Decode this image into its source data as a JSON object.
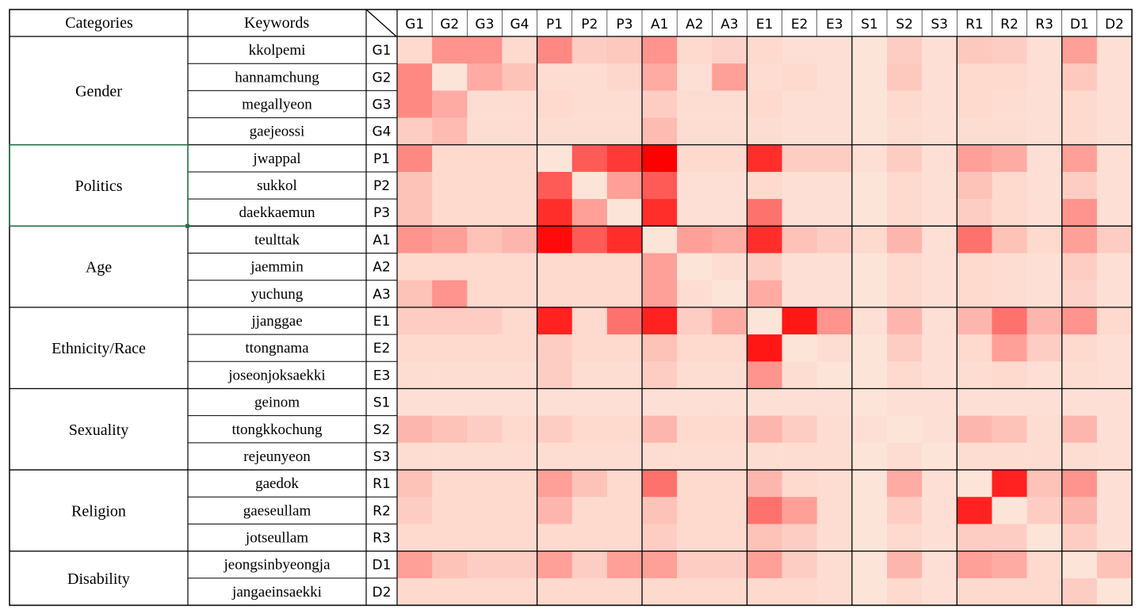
{
  "headers": {
    "categories": "Categories",
    "keywords": "Keywords"
  },
  "codes": [
    "G1",
    "G2",
    "G3",
    "G4",
    "P1",
    "P2",
    "P3",
    "A1",
    "A2",
    "A3",
    "E1",
    "E2",
    "E3",
    "S1",
    "S2",
    "S3",
    "R1",
    "R2",
    "R3",
    "D1",
    "D2"
  ],
  "rows": [
    {
      "category": "Gender",
      "keyword": "kkolpemi",
      "code": "G1"
    },
    {
      "category": "Gender",
      "keyword": "hannamchung",
      "code": "G2"
    },
    {
      "category": "Gender",
      "keyword": "megallyeon",
      "code": "G3"
    },
    {
      "category": "Gender",
      "keyword": "gaejeossi",
      "code": "G4"
    },
    {
      "category": "Politics",
      "keyword": "jwappal",
      "code": "P1"
    },
    {
      "category": "Politics",
      "keyword": "sukkol",
      "code": "P2"
    },
    {
      "category": "Politics",
      "keyword": "daekkaemun",
      "code": "P3"
    },
    {
      "category": "Age",
      "keyword": "teulttak",
      "code": "A1"
    },
    {
      "category": "Age",
      "keyword": "jaemmin",
      "code": "A2"
    },
    {
      "category": "Age",
      "keyword": "yuchung",
      "code": "A3"
    },
    {
      "category": "Ethnicity/Race",
      "keyword": "jjanggae",
      "code": "E1"
    },
    {
      "category": "Ethnicity/Race",
      "keyword": "ttongnama",
      "code": "E2"
    },
    {
      "category": "Ethnicity/Race",
      "keyword": "joseonjoksaekki",
      "code": "E3"
    },
    {
      "category": "Sexuality",
      "keyword": "geinom",
      "code": "S1"
    },
    {
      "category": "Sexuality",
      "keyword": "ttongkkochung",
      "code": "S2"
    },
    {
      "category": "Sexuality",
      "keyword": "rejeunyeon",
      "code": "S3"
    },
    {
      "category": "Religion",
      "keyword": "gaedok",
      "code": "R1"
    },
    {
      "category": "Religion",
      "keyword": "gaeseullam",
      "code": "R2"
    },
    {
      "category": "Religion",
      "keyword": "jotseullam",
      "code": "R3"
    },
    {
      "category": "Disability",
      "keyword": "jeongsinbyeongja",
      "code": "D1"
    },
    {
      "category": "Disability",
      "keyword": "jangaeinsaekki",
      "code": "D2"
    }
  ],
  "categories": [
    {
      "name": "Gender",
      "start": 0,
      "count": 4
    },
    {
      "name": "Politics",
      "start": 4,
      "count": 3
    },
    {
      "name": "Age",
      "start": 7,
      "count": 3
    },
    {
      "name": "Ethnicity/Race",
      "start": 10,
      "count": 3
    },
    {
      "name": "Sexuality",
      "start": 13,
      "count": 3
    },
    {
      "name": "Religion",
      "start": 16,
      "count": 3
    },
    {
      "name": "Disability",
      "start": 19,
      "count": 2
    }
  ],
  "selected_category": "Politics",
  "colors": {
    "low": "#fde4d9",
    "high": "#ff0000",
    "grid": "#000000",
    "selection": "#217346"
  },
  "chart_data": {
    "type": "heatmap",
    "x": [
      "G1",
      "G2",
      "G3",
      "G4",
      "P1",
      "P2",
      "P3",
      "A1",
      "A2",
      "A3",
      "E1",
      "E2",
      "E3",
      "S1",
      "S2",
      "S3",
      "R1",
      "R2",
      "R3",
      "D1",
      "D2"
    ],
    "y": [
      "G1",
      "G2",
      "G3",
      "G4",
      "P1",
      "P2",
      "P3",
      "A1",
      "A2",
      "A3",
      "E1",
      "E2",
      "E3",
      "S1",
      "S2",
      "S3",
      "R1",
      "R2",
      "R3",
      "D1",
      "D2"
    ],
    "values": [
      [
        0.05,
        0.35,
        0.35,
        0.05,
        0.4,
        0.1,
        0.12,
        0.35,
        0.05,
        0.08,
        0.05,
        0.02,
        0.02,
        0.0,
        0.1,
        0.02,
        0.12,
        0.1,
        0.02,
        0.3,
        0.02
      ],
      [
        0.4,
        0.0,
        0.25,
        0.15,
        0.03,
        0.03,
        0.06,
        0.25,
        0.02,
        0.3,
        0.03,
        0.05,
        0.02,
        0.0,
        0.12,
        0.02,
        0.05,
        0.05,
        0.02,
        0.12,
        0.02
      ],
      [
        0.4,
        0.25,
        0.03,
        0.03,
        0.05,
        0.03,
        0.03,
        0.1,
        0.03,
        0.03,
        0.05,
        0.02,
        0.02,
        0.0,
        0.05,
        0.02,
        0.05,
        0.03,
        0.02,
        0.05,
        0.02
      ],
      [
        0.1,
        0.18,
        0.03,
        0.03,
        0.03,
        0.03,
        0.03,
        0.18,
        0.03,
        0.03,
        0.03,
        0.02,
        0.02,
        0.0,
        0.03,
        0.02,
        0.03,
        0.03,
        0.02,
        0.05,
        0.02
      ],
      [
        0.4,
        0.05,
        0.05,
        0.05,
        0.0,
        0.6,
        0.75,
        1.0,
        0.05,
        0.05,
        0.8,
        0.1,
        0.1,
        0.02,
        0.1,
        0.02,
        0.3,
        0.25,
        0.02,
        0.3,
        0.02
      ],
      [
        0.15,
        0.05,
        0.05,
        0.05,
        0.6,
        0.0,
        0.3,
        0.6,
        0.02,
        0.02,
        0.05,
        0.02,
        0.02,
        0.0,
        0.05,
        0.02,
        0.15,
        0.05,
        0.02,
        0.1,
        0.02
      ],
      [
        0.15,
        0.05,
        0.05,
        0.05,
        0.8,
        0.3,
        0.0,
        0.8,
        0.02,
        0.02,
        0.5,
        0.02,
        0.02,
        0.0,
        0.05,
        0.02,
        0.1,
        0.05,
        0.02,
        0.35,
        0.02
      ],
      [
        0.35,
        0.3,
        0.15,
        0.2,
        0.95,
        0.6,
        0.8,
        0.0,
        0.3,
        0.25,
        0.8,
        0.15,
        0.1,
        0.05,
        0.2,
        0.02,
        0.5,
        0.15,
        0.05,
        0.3,
        0.1
      ],
      [
        0.05,
        0.05,
        0.05,
        0.05,
        0.05,
        0.05,
        0.05,
        0.3,
        0.0,
        0.03,
        0.1,
        0.02,
        0.02,
        0.0,
        0.05,
        0.02,
        0.05,
        0.03,
        0.02,
        0.1,
        0.02
      ],
      [
        0.15,
        0.35,
        0.05,
        0.05,
        0.05,
        0.05,
        0.05,
        0.3,
        0.03,
        0.0,
        0.25,
        0.02,
        0.02,
        0.0,
        0.05,
        0.02,
        0.05,
        0.03,
        0.02,
        0.08,
        0.02
      ],
      [
        0.1,
        0.1,
        0.1,
        0.05,
        0.85,
        0.05,
        0.5,
        0.85,
        0.1,
        0.25,
        0.0,
        0.9,
        0.35,
        0.02,
        0.2,
        0.02,
        0.2,
        0.5,
        0.2,
        0.35,
        0.05
      ],
      [
        0.05,
        0.05,
        0.05,
        0.05,
        0.1,
        0.05,
        0.05,
        0.15,
        0.05,
        0.05,
        0.9,
        0.0,
        0.03,
        0.0,
        0.1,
        0.02,
        0.05,
        0.3,
        0.1,
        0.05,
        0.02
      ],
      [
        0.03,
        0.03,
        0.03,
        0.03,
        0.1,
        0.03,
        0.03,
        0.1,
        0.03,
        0.03,
        0.35,
        0.03,
        0.0,
        0.0,
        0.05,
        0.02,
        0.03,
        0.05,
        0.02,
        0.03,
        0.02
      ],
      [
        0.02,
        0.02,
        0.02,
        0.02,
        0.02,
        0.02,
        0.02,
        0.02,
        0.02,
        0.02,
        0.02,
        0.02,
        0.02,
        0.0,
        0.02,
        0.02,
        0.02,
        0.02,
        0.02,
        0.02,
        0.02
      ],
      [
        0.2,
        0.15,
        0.1,
        0.05,
        0.1,
        0.05,
        0.05,
        0.2,
        0.05,
        0.05,
        0.2,
        0.1,
        0.03,
        0.02,
        0.0,
        0.02,
        0.2,
        0.15,
        0.03,
        0.2,
        0.02
      ],
      [
        0.03,
        0.03,
        0.03,
        0.03,
        0.03,
        0.03,
        0.03,
        0.03,
        0.03,
        0.03,
        0.03,
        0.03,
        0.03,
        0.0,
        0.03,
        0.0,
        0.03,
        0.03,
        0.03,
        0.03,
        0.02
      ],
      [
        0.15,
        0.05,
        0.05,
        0.05,
        0.3,
        0.15,
        0.05,
        0.5,
        0.05,
        0.05,
        0.2,
        0.05,
        0.03,
        0.0,
        0.25,
        0.02,
        0.0,
        0.85,
        0.15,
        0.35,
        0.02
      ],
      [
        0.1,
        0.05,
        0.05,
        0.05,
        0.2,
        0.05,
        0.05,
        0.15,
        0.05,
        0.05,
        0.5,
        0.3,
        0.03,
        0.0,
        0.1,
        0.02,
        0.85,
        0.0,
        0.1,
        0.2,
        0.02
      ],
      [
        0.05,
        0.05,
        0.05,
        0.05,
        0.05,
        0.05,
        0.05,
        0.1,
        0.05,
        0.05,
        0.15,
        0.1,
        0.03,
        0.0,
        0.05,
        0.02,
        0.1,
        0.1,
        0.0,
        0.1,
        0.02
      ],
      [
        0.3,
        0.15,
        0.1,
        0.1,
        0.3,
        0.1,
        0.3,
        0.3,
        0.1,
        0.1,
        0.3,
        0.1,
        0.03,
        0.0,
        0.2,
        0.02,
        0.3,
        0.25,
        0.05,
        0.0,
        0.15
      ],
      [
        0.05,
        0.05,
        0.05,
        0.05,
        0.05,
        0.05,
        0.05,
        0.05,
        0.05,
        0.05,
        0.05,
        0.05,
        0.03,
        0.0,
        0.05,
        0.02,
        0.05,
        0.05,
        0.05,
        0.1,
        0.0
      ]
    ]
  }
}
